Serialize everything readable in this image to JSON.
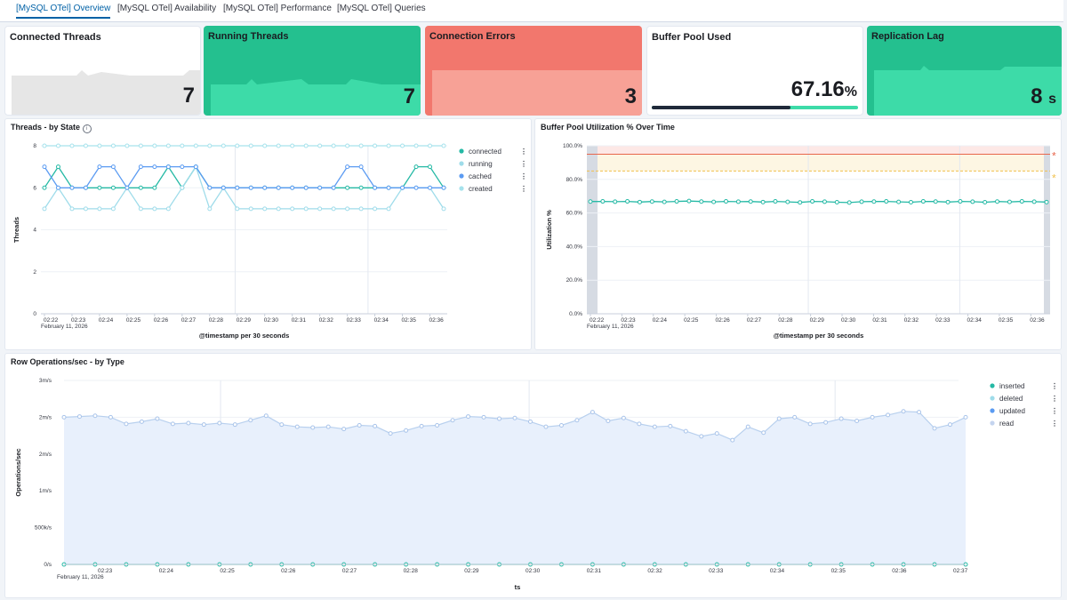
{
  "tabs": [
    {
      "label": "[MySQL OTel] Overview",
      "active": true
    },
    {
      "label": "[MySQL OTel] Availability",
      "active": false
    },
    {
      "label": "[MySQL OTel] Performance",
      "active": false
    },
    {
      "label": "[MySQL OTel] Queries",
      "active": false
    }
  ],
  "metrics": {
    "connected": {
      "title": "Connected Threads",
      "value": "7"
    },
    "running": {
      "title": "Running Threads",
      "value": "7"
    },
    "errors": {
      "title": "Connection Errors",
      "value": "3"
    },
    "buffer": {
      "title": "Buffer Pool Used",
      "value": "67.16",
      "unit": "%",
      "progress": 0.6716
    },
    "replication": {
      "title": "Replication Lag",
      "value": "8",
      "unit": "s"
    }
  },
  "colors": {
    "green": "#3ddba8",
    "green_dark": "#24c08f",
    "red": "#f2776d",
    "red_light": "#f7a196",
    "grey_fill": "#e6e6e6",
    "series_teal": "#25b9a5",
    "series_light": "#9fdcea",
    "series_blue": "#5b9bf2",
    "series_pale": "#a6e2ec",
    "area_fill": "#e8f0fc"
  },
  "chart_data": [
    {
      "type": "line",
      "title": "Threads - by State",
      "xlabel": "@timestamp per 30 seconds",
      "ylabel": "Threads",
      "date_label": "February 11, 2026",
      "x_ticks": [
        "02:22",
        "02:23",
        "02:24",
        "02:25",
        "02:26",
        "02:27",
        "02:28",
        "02:29",
        "02:30",
        "02:31",
        "02:32",
        "02:33",
        "02:34",
        "02:35",
        "02:36"
      ],
      "y_ticks": [
        "0",
        "2",
        "4",
        "6",
        "8"
      ],
      "ylim": [
        0,
        8
      ],
      "legend": "top-right",
      "series": [
        {
          "name": "connected",
          "color": "#25b9a5",
          "values": [
            6,
            7,
            6,
            6,
            6,
            6,
            6,
            6,
            6,
            7,
            6,
            7,
            6,
            6,
            6,
            6,
            6,
            6,
            6,
            6,
            6,
            6,
            6,
            6,
            6,
            6,
            6,
            7,
            7,
            6
          ]
        },
        {
          "name": "running",
          "color": "#9fdcea",
          "values": [
            5,
            6,
            5,
            5,
            5,
            5,
            6,
            5,
            5,
            5,
            6,
            7,
            5,
            6,
            5,
            5,
            5,
            5,
            5,
            5,
            5,
            5,
            5,
            5,
            5,
            5,
            6,
            6,
            6,
            5
          ]
        },
        {
          "name": "cached",
          "color": "#5b9bf2",
          "values": [
            7,
            6,
            6,
            6,
            7,
            7,
            6,
            7,
            7,
            7,
            7,
            7,
            6,
            6,
            6,
            6,
            6,
            6,
            6,
            6,
            6,
            6,
            7,
            7,
            6,
            6,
            6,
            6,
            6,
            6
          ]
        },
        {
          "name": "created",
          "color": "#a6e2ec",
          "values": [
            8,
            8,
            8,
            8,
            8,
            8,
            8,
            8,
            8,
            8,
            8,
            8,
            8,
            8,
            8,
            8,
            8,
            8,
            8,
            8,
            8,
            8,
            8,
            8,
            8,
            8,
            8,
            8,
            8,
            8
          ]
        }
      ]
    },
    {
      "type": "line",
      "title": "Buffer Pool Utilization % Over Time",
      "xlabel": "@timestamp per 30 seconds",
      "ylabel": "Utilization %",
      "date_label": "February 11, 2026",
      "x_ticks": [
        "02:22",
        "02:23",
        "02:24",
        "02:25",
        "02:26",
        "02:27",
        "02:28",
        "02:29",
        "02:30",
        "02:31",
        "02:32",
        "02:33",
        "02:34",
        "02:35",
        "02:36"
      ],
      "y_ticks": [
        "0.0%",
        "20.0%",
        "40.0%",
        "60.0%",
        "80.0%",
        "100.0%"
      ],
      "ylim": [
        0,
        100
      ],
      "threshold_critical": 95,
      "threshold_warning": 85,
      "markers": [
        "*",
        "*"
      ],
      "series": [
        {
          "name": "utilization",
          "color": "#25b9a5",
          "values": [
            66.8,
            66.9,
            66.7,
            66.9,
            66.5,
            66.8,
            66.6,
            66.9,
            67.1,
            66.8,
            66.6,
            66.9,
            66.7,
            66.8,
            66.5,
            66.9,
            66.6,
            66.3,
            66.9,
            66.7,
            66.4,
            66.2,
            66.7,
            66.8,
            66.9,
            66.6,
            66.4,
            66.9,
            66.8,
            66.5,
            66.9,
            66.7,
            66.4,
            66.8,
            66.6,
            66.9,
            66.7,
            66.5
          ]
        }
      ]
    },
    {
      "type": "area",
      "title": "Row Operations/sec - by Type",
      "xlabel": "ts",
      "ylabel": "Operations/sec",
      "date_label": "February 11, 2026",
      "x_ticks": [
        "02:23",
        "02:24",
        "02:25",
        "02:26",
        "02:27",
        "02:28",
        "02:29",
        "02:30",
        "02:31",
        "02:32",
        "02:33",
        "02:34",
        "02:35",
        "02:36",
        "02:37"
      ],
      "y_ticks": [
        "0/s",
        "500k/s",
        "1m/s",
        "2m/s",
        "2m/s",
        "3m/s"
      ],
      "ylim": [
        0,
        2500000
      ],
      "legend": "top-right",
      "series": [
        {
          "name": "inserted",
          "color": "#25b9a5",
          "values": [
            0,
            0,
            0,
            0,
            0,
            0,
            0,
            0,
            0,
            0,
            0,
            0,
            0,
            0,
            0,
            0,
            0,
            0,
            0,
            0,
            0,
            0,
            0,
            0,
            0,
            0,
            0,
            0,
            0,
            0,
            0,
            0,
            0,
            0,
            0,
            0,
            0,
            0,
            0,
            0,
            0,
            0,
            0,
            0,
            0,
            0,
            0,
            0,
            0,
            0,
            0,
            0,
            0,
            0,
            0,
            0,
            0,
            0,
            0
          ]
        },
        {
          "name": "deleted",
          "color": "#9fdcea",
          "values": [
            0,
            0,
            0,
            0,
            0,
            0,
            0,
            0,
            0,
            0,
            0,
            0,
            0,
            0,
            0,
            0,
            0,
            0,
            0,
            0,
            0,
            0,
            0,
            0,
            0,
            0,
            0,
            0,
            0,
            0,
            0,
            0,
            0,
            0,
            0,
            0,
            0,
            0,
            0,
            0,
            0,
            0,
            0,
            0,
            0,
            0,
            0,
            0,
            0,
            0,
            0,
            0,
            0,
            0,
            0,
            0,
            0,
            0,
            0
          ]
        },
        {
          "name": "updated",
          "color": "#5b9bf2",
          "values": [
            0,
            0,
            0,
            0,
            0,
            0,
            0,
            0,
            0,
            0,
            0,
            0,
            0,
            0,
            0,
            0,
            0,
            0,
            0,
            0,
            0,
            0,
            0,
            0,
            0,
            0,
            0,
            0,
            0,
            0,
            0,
            0,
            0,
            0,
            0,
            0,
            0,
            0,
            0,
            0,
            0,
            0,
            0,
            0,
            0,
            0,
            0,
            0,
            0,
            0,
            0,
            0,
            0,
            0,
            0,
            0,
            0,
            0,
            0
          ]
        },
        {
          "name": "read",
          "color": "#c4d4ef",
          "values": [
            2000000,
            2010000,
            2020000,
            2000000,
            1910000,
            1940000,
            1980000,
            1910000,
            1920000,
            1900000,
            1920000,
            1900000,
            1960000,
            2020000,
            1900000,
            1870000,
            1860000,
            1870000,
            1840000,
            1890000,
            1880000,
            1780000,
            1820000,
            1880000,
            1890000,
            1960000,
            2010000,
            2000000,
            1980000,
            1990000,
            1940000,
            1870000,
            1890000,
            1960000,
            2070000,
            1950000,
            1990000,
            1910000,
            1870000,
            1880000,
            1810000,
            1740000,
            1780000,
            1690000,
            1870000,
            1790000,
            1980000,
            2000000,
            1910000,
            1930000,
            1980000,
            1950000,
            2000000,
            2030000,
            2080000,
            2070000,
            1850000,
            1900000,
            2000000
          ]
        }
      ]
    }
  ]
}
